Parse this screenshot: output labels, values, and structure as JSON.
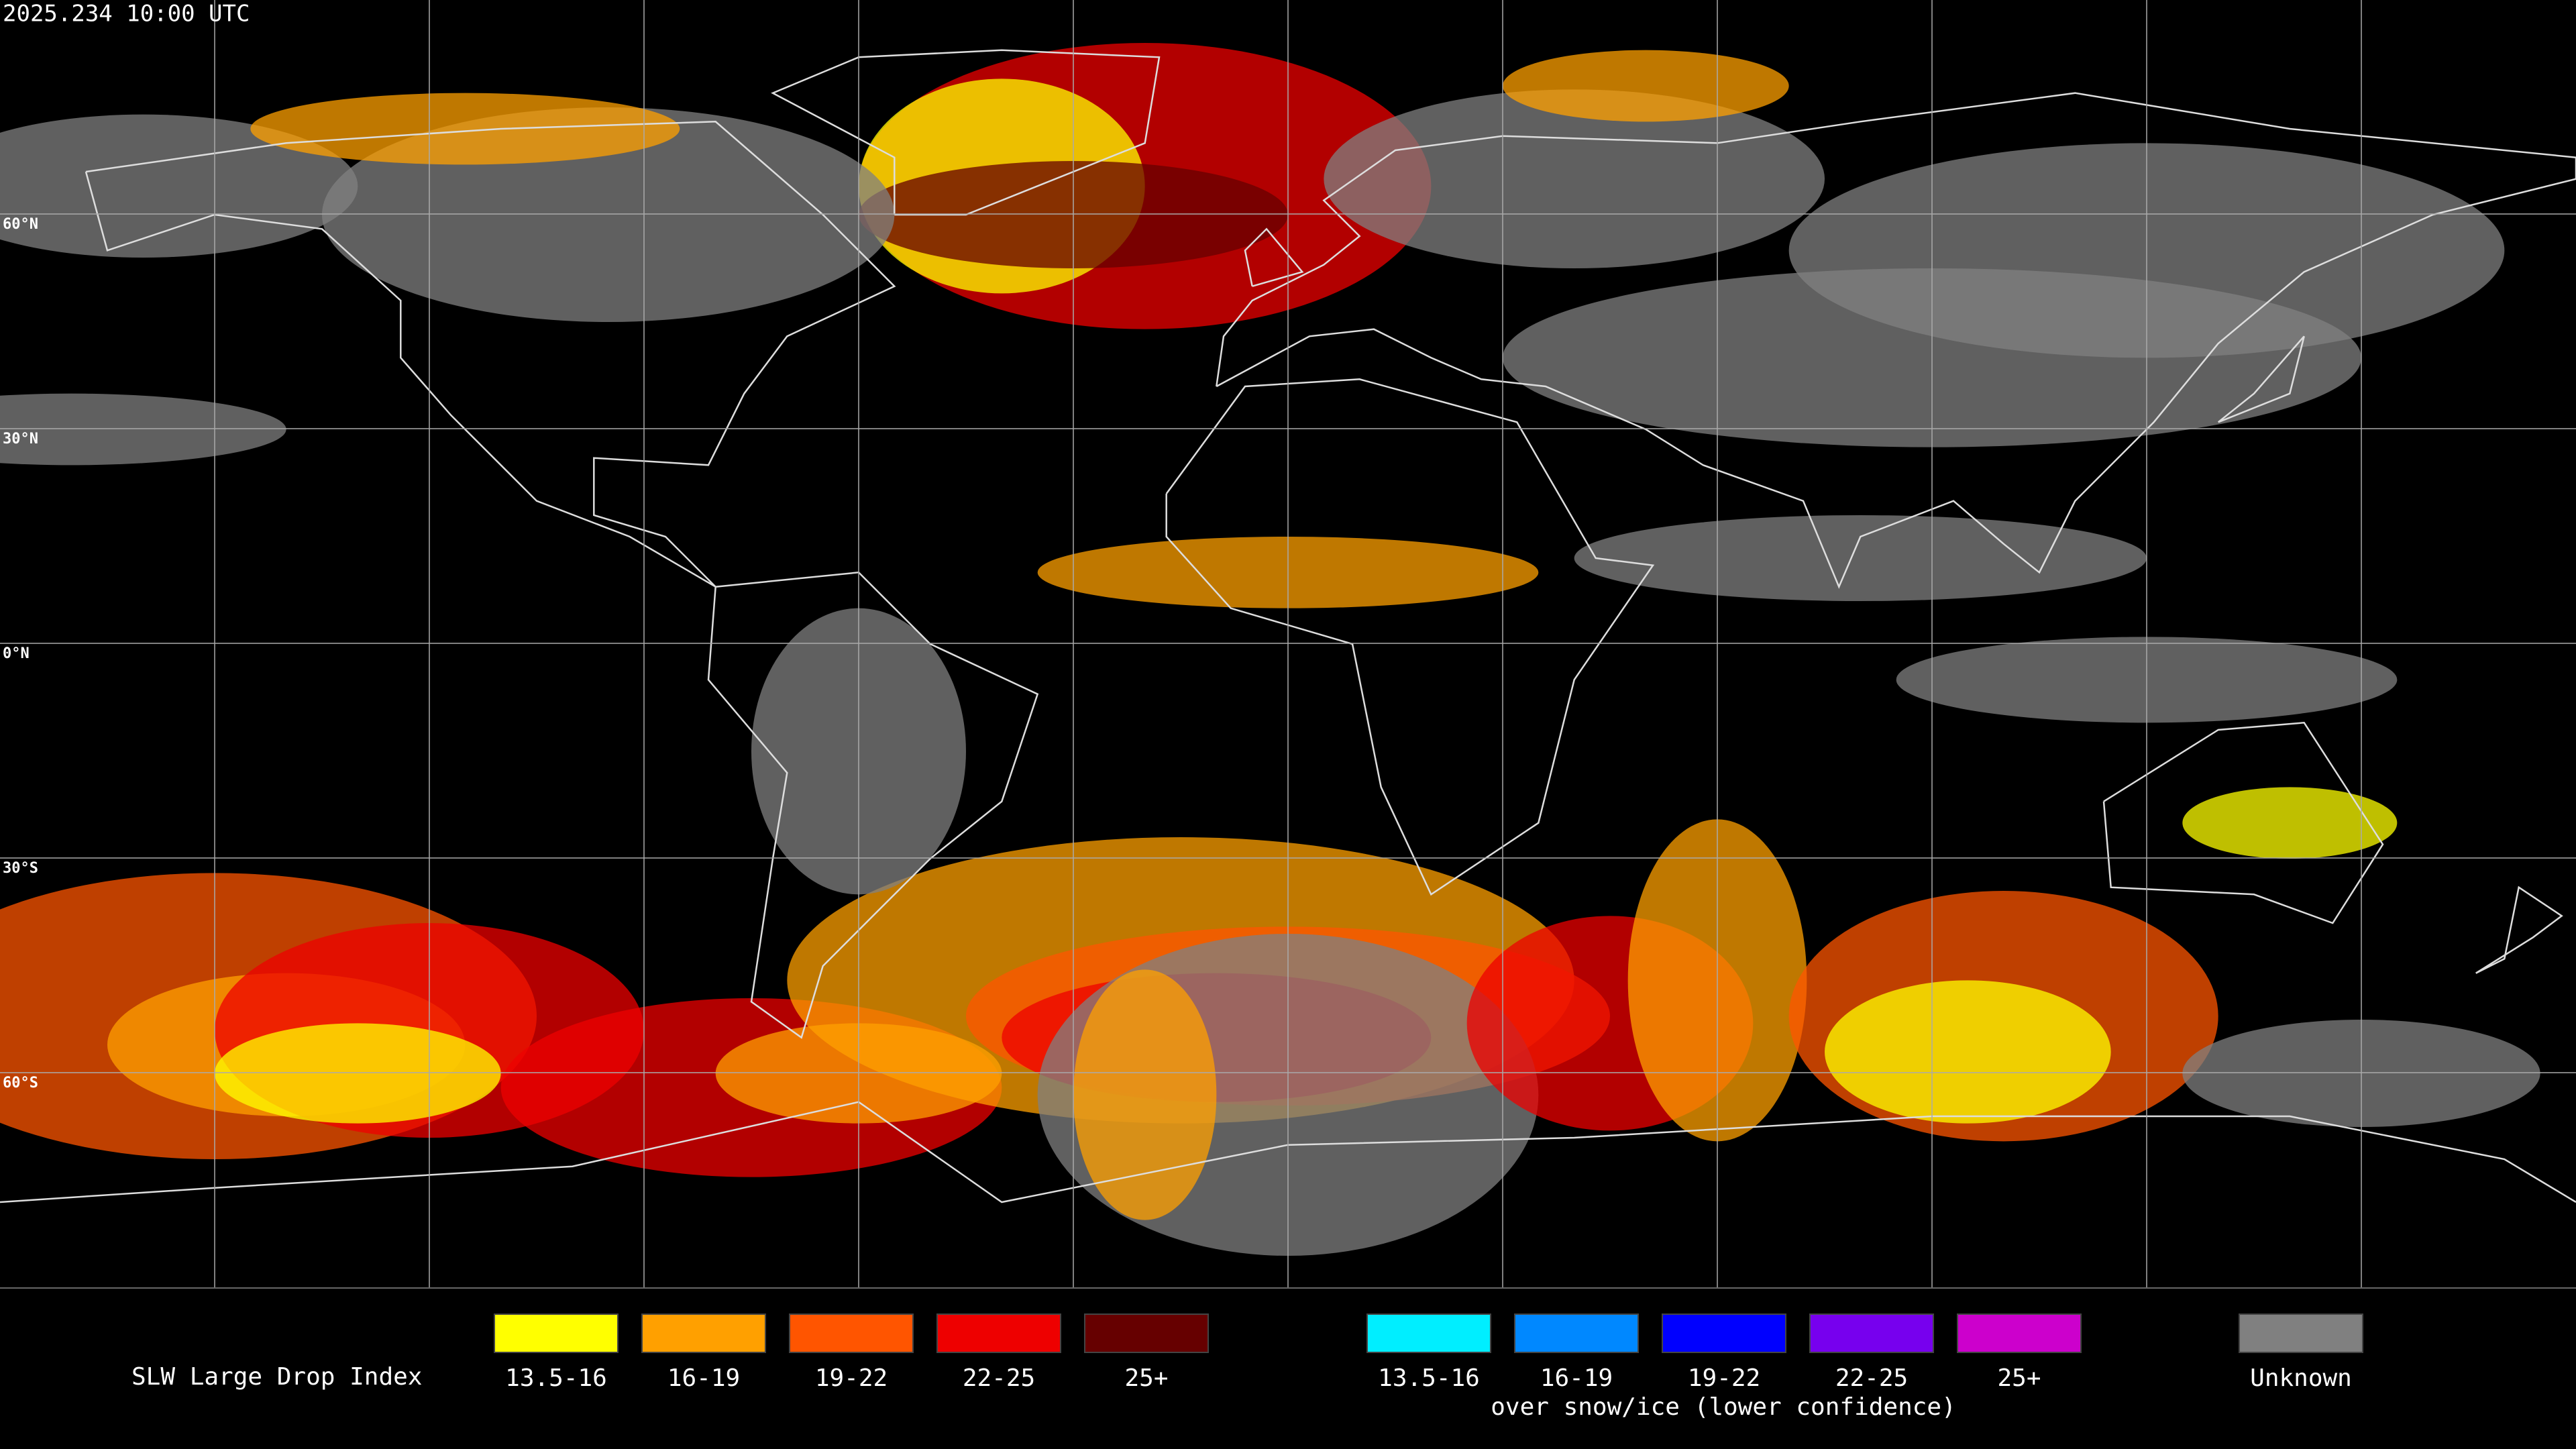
{
  "header": {
    "timestamp": "2025.234 10:00 UTC"
  },
  "grid": {
    "lat_labels": [
      "60°N",
      "30°N",
      "0°N",
      "30°S",
      "60°S"
    ]
  },
  "legend": {
    "title": "SLW Large Drop Index",
    "liquid": [
      {
        "label": "13.5-16",
        "color": "#ffff00"
      },
      {
        "label": "16-19",
        "color": "#ffa000"
      },
      {
        "label": "19-22",
        "color": "#ff5500"
      },
      {
        "label": "22-25",
        "color": "#ee0000"
      },
      {
        "label": "25+",
        "color": "#660000"
      }
    ],
    "snow_ice": [
      {
        "label": "13.5-16",
        "color": "#00eeff"
      },
      {
        "label": "16-19",
        "color": "#0088ff"
      },
      {
        "label": "19-22",
        "color": "#0000ff"
      },
      {
        "label": "22-25",
        "color": "#7700ee"
      },
      {
        "label": "25+",
        "color": "#cc00cc"
      }
    ],
    "snow_ice_caption": "over snow/ice (lower confidence)",
    "unknown": {
      "label": "Unknown",
      "color": "#808080"
    }
  }
}
